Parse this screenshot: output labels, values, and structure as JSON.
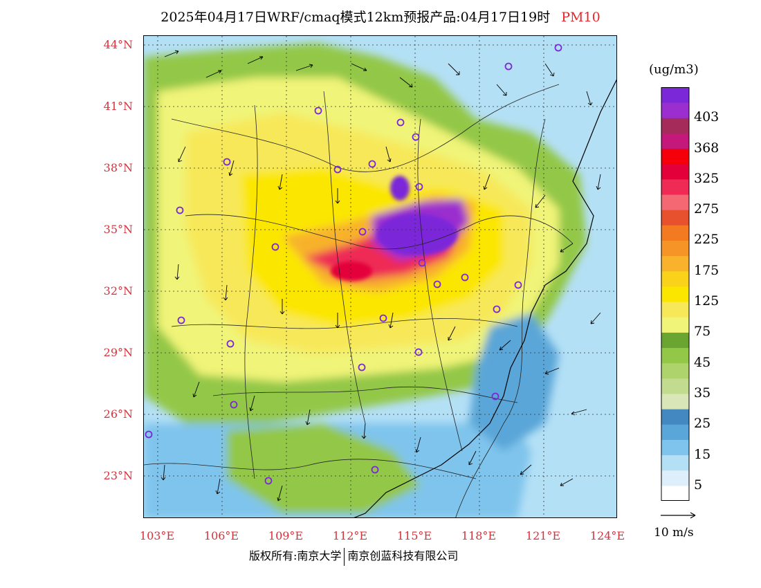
{
  "title": {
    "main": "2025年04月17日WRF/cmaq模式12km预报产品:04月17日19时",
    "pollutant": "PM10",
    "pollutant_color": "#e8242a"
  },
  "latitude_labels": [
    "44°N",
    "41°N",
    "38°N",
    "35°N",
    "32°N",
    "29°N",
    "26°N",
    "23°N"
  ],
  "longitude_labels": [
    "103°E",
    "106°E",
    "109°E",
    "112°E",
    "115°E",
    "118°E",
    "121°E",
    "124°E"
  ],
  "colorbar": {
    "unit": "(ug/m3)",
    "colors": [
      "#ffffff",
      "#dceffa",
      "#b4e0f6",
      "#7fc4ec",
      "#5aa6d8",
      "#4488c2",
      "#d9e7b8",
      "#c1dc8e",
      "#aed36d",
      "#93c747",
      "#6aa532",
      "#f0f478",
      "#f7e85a",
      "#fbe600",
      "#fbd21a",
      "#f8b22b",
      "#f79427",
      "#f47a22",
      "#e8512e",
      "#f36872",
      "#ee2a55",
      "#e3003a",
      "#f5000a",
      "#c4197a",
      "#a52c5a",
      "#9b2ecf",
      "#7b28d9"
    ],
    "labels": [
      "5",
      "15",
      "25",
      "35",
      "45",
      "75",
      "125",
      "175",
      "225",
      "275",
      "325",
      "368",
      "403"
    ]
  },
  "wind_reference": "10 m/s",
  "footer": {
    "left": "版权所有:南京大学",
    "right": "南京创蓝科技有限公司"
  }
}
